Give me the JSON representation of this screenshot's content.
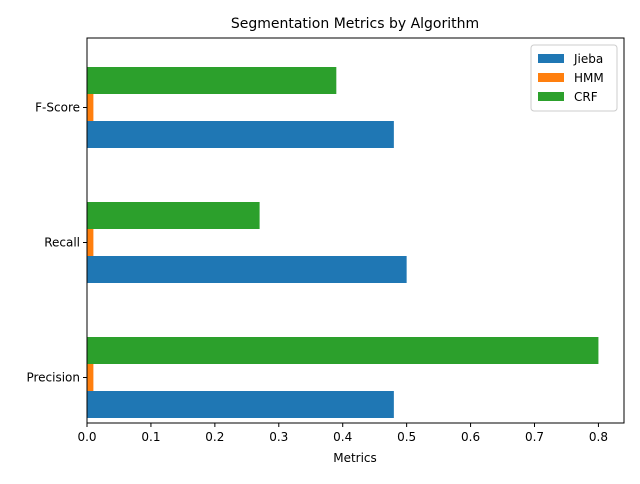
{
  "chart_data": {
    "type": "bar",
    "orientation": "horizontal",
    "title": "Segmentation Metrics by Algorithm",
    "xlabel": "Metrics",
    "ylabel": "",
    "categories": [
      "Precision",
      "Recall",
      "F-Score"
    ],
    "series": [
      {
        "name": "Jieba",
        "color": "#1f77b4",
        "values": [
          0.48,
          0.5,
          0.48
        ]
      },
      {
        "name": "HMM",
        "color": "#ff7f0e",
        "values": [
          0.01,
          0.01,
          0.01
        ]
      },
      {
        "name": "CRF",
        "color": "#2ca02c",
        "values": [
          0.8,
          0.27,
          0.39
        ]
      }
    ],
    "xlim": [
      0,
      0.84
    ],
    "xticks": [
      0.0,
      0.1,
      0.2,
      0.3,
      0.4,
      0.5,
      0.6,
      0.7,
      0.8
    ],
    "xtick_labels": [
      "0.0",
      "0.1",
      "0.2",
      "0.3",
      "0.4",
      "0.5",
      "0.6",
      "0.7",
      "0.8"
    ],
    "grid": false,
    "legend_position": "top-right"
  }
}
